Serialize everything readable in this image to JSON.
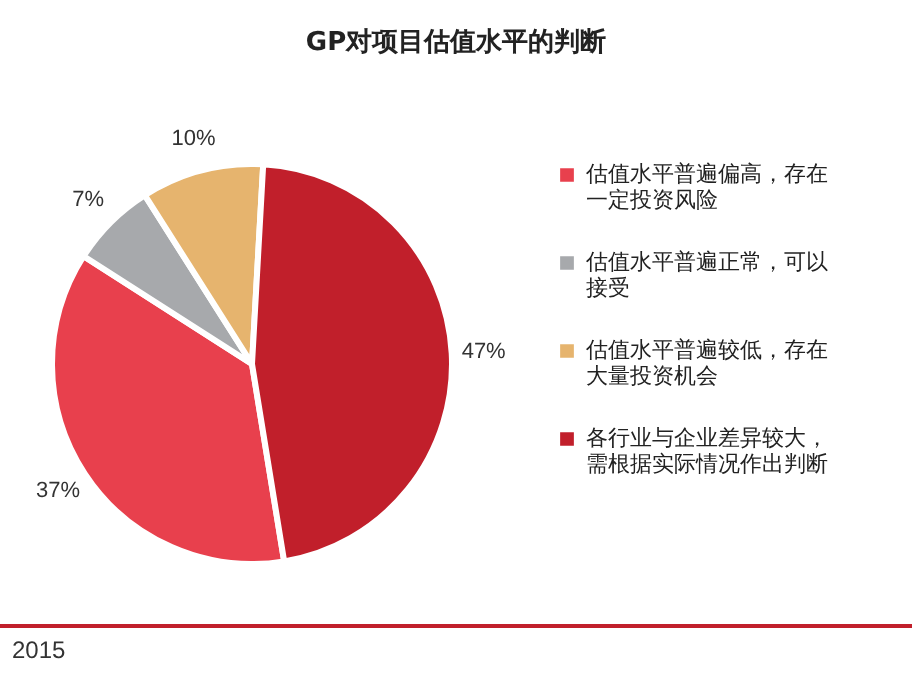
{
  "chart_data": {
    "type": "pie",
    "title": "GP对项目估值水平的判断",
    "categories": [
      "估值水平普遍偏高，存在一定投资风险",
      "估值水平普遍正常，可以接受",
      "估值水平普遍较低，存在大量投资机会",
      "各行业与企业差异较大，需根据实际情况作出判断"
    ],
    "values": [
      37,
      7,
      10,
      47
    ],
    "value_labels": [
      "37%",
      "7%",
      "10%",
      "47%"
    ],
    "colors": [
      "#e8404d",
      "#a7a9ac",
      "#e6b46e",
      "#c11f2b"
    ],
    "legend": "right",
    "annotations": [
      "2015"
    ]
  }
}
